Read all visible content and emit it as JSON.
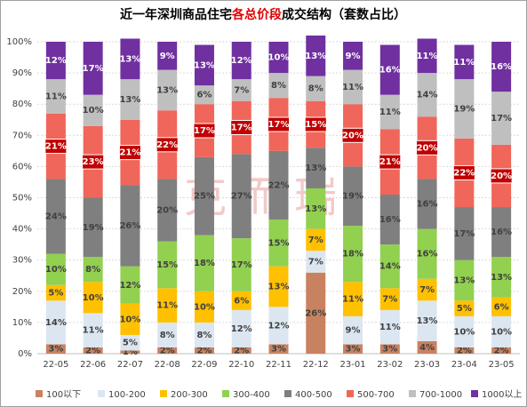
{
  "chart_data": {
    "type": "stacked_bar",
    "title": [
      "近一年深圳商品住宅",
      "各总价段",
      "成交结构（套数占比）"
    ],
    "title_highlight_color": "#e00000",
    "watermark": "克而瑞",
    "categories": [
      "22-05",
      "22-06",
      "22-07",
      "22-08",
      "22-09",
      "22-10",
      "22-11",
      "22-12",
      "23-01",
      "23-02",
      "23-03",
      "23-04",
      "23-05"
    ],
    "series": [
      {
        "name": "100以下",
        "color": "#c9825f",
        "label_color": "#404040",
        "values": [
          3,
          2,
          1,
          2,
          2,
          2,
          3,
          26,
          3,
          3,
          4,
          2,
          2
        ]
      },
      {
        "name": "100-200",
        "color": "#dce6f1",
        "label_color": "#404040",
        "values": [
          14,
          11,
          5,
          8,
          8,
          12,
          12,
          7,
          9,
          11,
          13,
          10,
          10
        ]
      },
      {
        "name": "200-300",
        "color": "#ffc000",
        "label_color": "#404040",
        "values": [
          5,
          10,
          10,
          11,
          10,
          6,
          13,
          7,
          11,
          7,
          7,
          5,
          6
        ]
      },
      {
        "name": "300-400",
        "color": "#92d050",
        "label_color": "#404040",
        "values": [
          10,
          8,
          12,
          15,
          18,
          17,
          15,
          13,
          18,
          14,
          16,
          13,
          13
        ]
      },
      {
        "name": "400-500",
        "color": "#7f7f7f",
        "label_color": "#404040",
        "values": [
          24,
          19,
          26,
          20,
          25,
          27,
          22,
          13,
          19,
          16,
          16,
          17,
          16
        ]
      },
      {
        "name": "500-700",
        "color": "#f0665a",
        "label_color": "#ffffff",
        "label_box": "#c00000",
        "values": [
          21,
          23,
          21,
          22,
          17,
          17,
          17,
          15,
          20,
          21,
          20,
          22,
          20
        ]
      },
      {
        "name": "700-1000",
        "color": "#bfbfbf",
        "label_color": "#404040",
        "values": [
          11,
          10,
          13,
          13,
          6,
          7,
          8,
          8,
          11,
          11,
          14,
          19,
          17
        ]
      },
      {
        "name": "1000以上",
        "color": "#7030a0",
        "label_color": "#ffffff",
        "values": [
          12,
          17,
          13,
          9,
          13,
          12,
          10,
          13,
          9,
          16,
          11,
          11,
          16
        ]
      }
    ],
    "value_unit_label": "%",
    "ylim": [
      0,
      100
    ],
    "yticks": [
      {
        "value": 0,
        "label": "0%"
      },
      {
        "value": 10,
        "label": "10%"
      },
      {
        "value": 20,
        "label": "20%"
      },
      {
        "value": 30,
        "label": "30%"
      },
      {
        "value": 40,
        "label": "40%"
      },
      {
        "value": 50,
        "label": "50%"
      },
      {
        "value": 60,
        "label": "60%"
      },
      {
        "value": 70,
        "label": "70%"
      },
      {
        "value": 80,
        "label": "80%"
      },
      {
        "value": 90,
        "label": "90%"
      },
      {
        "value": 100,
        "label": "100%"
      }
    ],
    "grid": true,
    "legend": "bottom"
  }
}
